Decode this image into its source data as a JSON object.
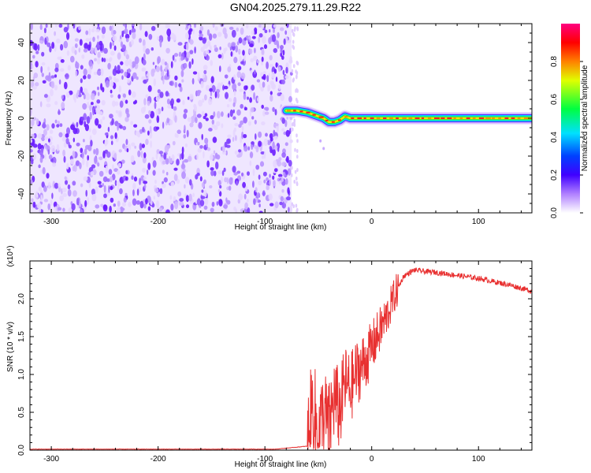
{
  "figure": {
    "title": "GN04.2025.279.11.29.R22"
  },
  "chart_data": [
    {
      "type": "heatmap",
      "xlabel": "Height of straight line (km)",
      "ylabel": "Frequency (Hz)",
      "xlim": [
        -320,
        150
      ],
      "ylim": [
        -50,
        50
      ],
      "x_ticks": [
        -300,
        -200,
        -100,
        0,
        100
      ],
      "y_ticks": [
        -40,
        -20,
        0,
        20,
        40
      ],
      "noise_region_x": [
        -320,
        -75
      ],
      "signal_track": [
        {
          "x": -80,
          "y": 4
        },
        {
          "x": -70,
          "y": 4
        },
        {
          "x": -60,
          "y": 3
        },
        {
          "x": -50,
          "y": 1
        },
        {
          "x": -45,
          "y": 0
        },
        {
          "x": -40,
          "y": -2
        },
        {
          "x": -35,
          "y": -2
        },
        {
          "x": -30,
          "y": -1
        },
        {
          "x": -25,
          "y": 1
        },
        {
          "x": -20,
          "y": 0
        },
        {
          "x": 0,
          "y": 0
        },
        {
          "x": 50,
          "y": 0
        },
        {
          "x": 100,
          "y": 0
        },
        {
          "x": 150,
          "y": 0
        }
      ],
      "colorbar": {
        "label": "Normalized spectral amplitude",
        "range": [
          0,
          1
        ],
        "ticks": [
          "0.0",
          "0.2",
          "0.4",
          "0.6",
          "0.8"
        ],
        "colormap": [
          "#ffffff",
          "#8000ff",
          "#0000ff",
          "#00ffff",
          "#00ff00",
          "#ffff00",
          "#ff8000",
          "#ff0000",
          "#ff00ff"
        ]
      }
    },
    {
      "type": "line",
      "xlabel": "Height of straight line (km)",
      "ylabel": "SNR (10 * v/v)",
      "y_multiplier": "(x10⁴)",
      "xlim": [
        -320,
        150
      ],
      "ylim": [
        0,
        2.5
      ],
      "x_ticks": [
        -300,
        -200,
        -100,
        0,
        100
      ],
      "y_ticks": [
        "0.0",
        "0.5",
        "1.0",
        "1.5",
        "2.0"
      ],
      "color": "#e83030",
      "series": [
        {
          "x": [
            -320,
            -250,
            -150,
            -90,
            -60,
            -55,
            -50,
            -45,
            -40,
            -35,
            -30,
            -25,
            -20,
            -15,
            -10,
            -5,
            0,
            5,
            10,
            15,
            20,
            25,
            30,
            40,
            50,
            60,
            70,
            80,
            90,
            100,
            110,
            120,
            130,
            140,
            150
          ],
          "y": [
            0.01,
            0.01,
            0.01,
            0.01,
            0.05,
            0.6,
            0.15,
            0.5,
            0.3,
            0.7,
            0.5,
            0.9,
            0.8,
            1.0,
            1.1,
            1.2,
            1.35,
            1.5,
            1.65,
            1.8,
            2.0,
            2.15,
            2.3,
            2.38,
            2.36,
            2.35,
            2.33,
            2.31,
            2.29,
            2.27,
            2.24,
            2.21,
            2.18,
            2.14,
            2.1
          ]
        }
      ]
    }
  ]
}
